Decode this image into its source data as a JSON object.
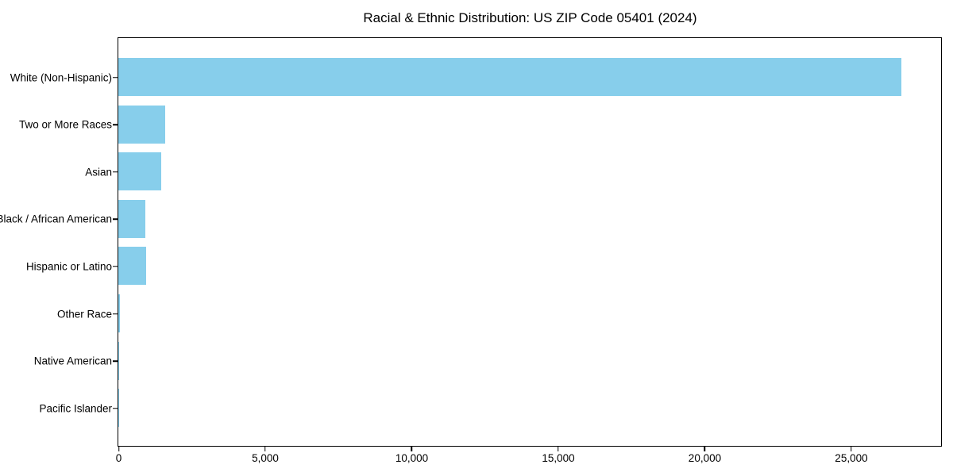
{
  "chart_data": {
    "type": "bar",
    "orientation": "horizontal",
    "title": "Racial & Ethnic Distribution: US ZIP Code 05401 (2024)",
    "categories": [
      "White (Non-Hispanic)",
      "Two or More Races",
      "Asian",
      "Black / African American",
      "Hispanic or Latino",
      "Other Race",
      "Native American",
      "Pacific Islander"
    ],
    "values": [
      26720,
      1590,
      1450,
      920,
      950,
      50,
      25,
      10
    ],
    "xlabel": "",
    "ylabel": "",
    "xlim": [
      0,
      28050
    ],
    "xticks": [
      0,
      5000,
      10000,
      15000,
      20000,
      25000
    ],
    "xtick_labels": [
      "0",
      "5,000",
      "10,000",
      "15,000",
      "20,000",
      "25,000"
    ],
    "bar_color": "#87CEEB",
    "axis_color": "#000000",
    "background_color": "#ffffff",
    "grid": false,
    "legend": null
  }
}
